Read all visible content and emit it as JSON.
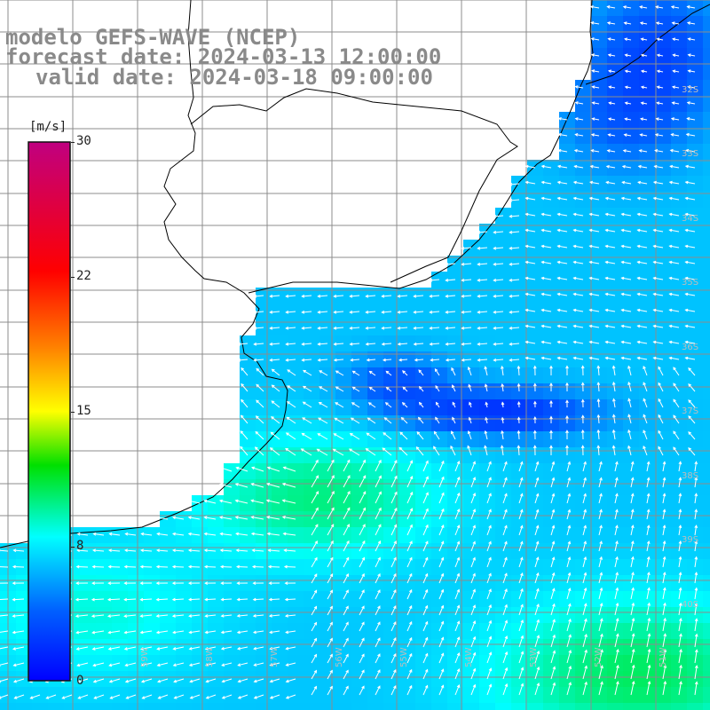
{
  "header": {
    "line1": "modelo GEFS-WAVE (NCEP)",
    "line2": "forecast date: 2024-03-13 12:00:00",
    "line3": "valid date: 2024-03-18 09:00:00"
  },
  "colorbar": {
    "unit": "[m/s]",
    "ticks": [
      "30",
      "22",
      "15",
      "8",
      "0"
    ],
    "min": 0,
    "max": 30,
    "colors": [
      "#0000ff",
      "#00aaff",
      "#00ffff",
      "#00e000",
      "#ffff00",
      "#ff8000",
      "#ff0000",
      "#c00080"
    ]
  },
  "lat_labels": [
    "32S",
    "33S",
    "34S",
    "35S",
    "36S",
    "37S",
    "38S",
    "39S",
    "40S"
  ],
  "lon_labels": [
    "59W",
    "58W",
    "57W",
    "56W",
    "55W",
    "54W",
    "53W",
    "52W",
    "51W"
  ],
  "colors": {
    "land": "#ffffff",
    "coastline": "#000000",
    "grid": "#8c8c8c",
    "arrows": "#ffffff"
  }
}
